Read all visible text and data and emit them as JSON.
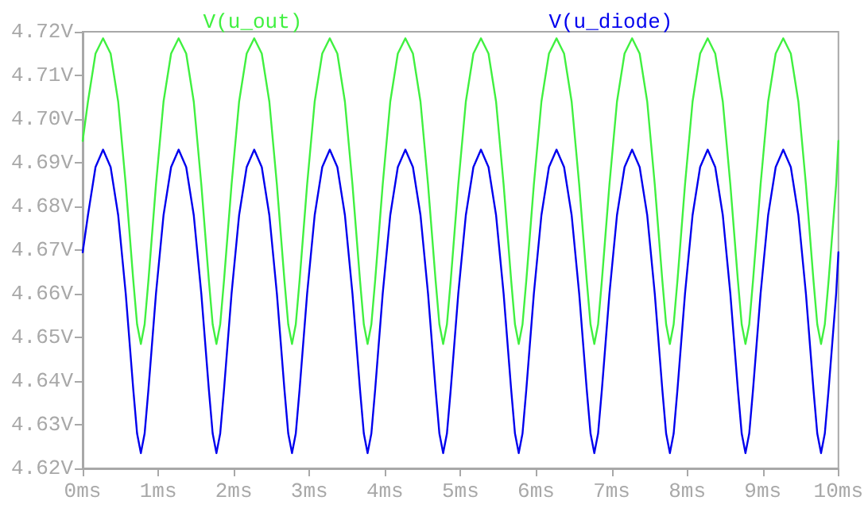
{
  "chart_data": {
    "type": "line",
    "legend": "top",
    "grid": false,
    "xlim": [
      0,
      10
    ],
    "xticks": [
      {
        "value": 0,
        "label": "0ms"
      },
      {
        "value": 1,
        "label": "1ms"
      },
      {
        "value": 2,
        "label": "2ms"
      },
      {
        "value": 3,
        "label": "3ms"
      },
      {
        "value": 4,
        "label": "4ms"
      },
      {
        "value": 5,
        "label": "5ms"
      },
      {
        "value": 6,
        "label": "6ms"
      },
      {
        "value": 7,
        "label": "7ms"
      },
      {
        "value": 8,
        "label": "8ms"
      },
      {
        "value": 9,
        "label": "9ms"
      },
      {
        "value": 10,
        "label": "10ms"
      }
    ],
    "ylim": [
      4.62,
      4.72
    ],
    "yticks": [
      {
        "value": 4.62,
        "label": "4.62V"
      },
      {
        "value": 4.63,
        "label": "4.63V"
      },
      {
        "value": 4.64,
        "label": "4.64V"
      },
      {
        "value": 4.65,
        "label": "4.65V"
      },
      {
        "value": 4.66,
        "label": "4.66V"
      },
      {
        "value": 4.67,
        "label": "4.67V"
      },
      {
        "value": 4.68,
        "label": "4.68V"
      },
      {
        "value": 4.69,
        "label": "4.69V"
      },
      {
        "value": 4.7,
        "label": "4.70V"
      },
      {
        "value": 4.71,
        "label": "4.71V"
      },
      {
        "value": 4.72,
        "label": "4.72V"
      }
    ],
    "x": [
      0,
      0.07,
      0.17,
      0.27,
      0.37,
      0.47,
      0.57,
      0.67,
      0.72,
      0.77,
      0.82,
      0.87,
      0.97,
      1.07,
      1.17,
      1.27,
      1.37,
      1.47,
      1.57,
      1.67,
      1.72,
      1.77,
      1.82,
      1.87,
      1.97,
      2.07,
      2.17,
      2.27,
      2.37,
      2.47,
      2.57,
      2.67,
      2.72,
      2.77,
      2.82,
      2.87,
      2.97,
      3.07,
      3.17,
      3.27,
      3.37,
      3.47,
      3.57,
      3.67,
      3.72,
      3.77,
      3.82,
      3.87,
      3.97,
      4.07,
      4.17,
      4.27,
      4.37,
      4.47,
      4.57,
      4.67,
      4.72,
      4.77,
      4.82,
      4.87,
      4.97,
      5.07,
      5.17,
      5.27,
      5.37,
      5.47,
      5.57,
      5.67,
      5.72,
      5.77,
      5.82,
      5.87,
      5.97,
      6.07,
      6.17,
      6.27,
      6.37,
      6.47,
      6.57,
      6.67,
      6.72,
      6.77,
      6.82,
      6.87,
      6.97,
      7.07,
      7.17,
      7.27,
      7.37,
      7.47,
      7.57,
      7.67,
      7.72,
      7.77,
      7.82,
      7.87,
      7.97,
      8.07,
      8.17,
      8.27,
      8.37,
      8.47,
      8.57,
      8.67,
      8.72,
      8.77,
      8.82,
      8.87,
      8.97,
      9.07,
      9.17,
      9.27,
      9.37,
      9.47,
      9.57,
      9.67,
      9.72,
      9.77,
      9.82,
      9.87,
      9.97,
      10
    ],
    "series": [
      {
        "name": "V(u_out)",
        "color": "#40f040",
        "values": [
          4.695,
          4.704,
          4.715,
          4.7185,
          4.715,
          4.704,
          4.685,
          4.663,
          4.653,
          4.6485,
          4.653,
          4.663,
          4.685,
          4.704,
          4.715,
          4.7185,
          4.715,
          4.704,
          4.685,
          4.663,
          4.653,
          4.6485,
          4.653,
          4.663,
          4.685,
          4.704,
          4.715,
          4.7185,
          4.715,
          4.704,
          4.685,
          4.663,
          4.653,
          4.6485,
          4.653,
          4.663,
          4.685,
          4.704,
          4.715,
          4.7185,
          4.715,
          4.704,
          4.685,
          4.663,
          4.653,
          4.6485,
          4.653,
          4.663,
          4.685,
          4.704,
          4.715,
          4.7185,
          4.715,
          4.704,
          4.685,
          4.663,
          4.653,
          4.6485,
          4.653,
          4.663,
          4.685,
          4.704,
          4.715,
          4.7185,
          4.715,
          4.704,
          4.685,
          4.663,
          4.653,
          4.6485,
          4.653,
          4.663,
          4.685,
          4.704,
          4.715,
          4.7185,
          4.715,
          4.704,
          4.685,
          4.663,
          4.653,
          4.6485,
          4.653,
          4.663,
          4.685,
          4.704,
          4.715,
          4.7185,
          4.715,
          4.704,
          4.685,
          4.663,
          4.653,
          4.6485,
          4.653,
          4.663,
          4.685,
          4.704,
          4.715,
          4.7185,
          4.715,
          4.704,
          4.685,
          4.663,
          4.653,
          4.6485,
          4.653,
          4.663,
          4.685,
          4.704,
          4.715,
          4.7185,
          4.715,
          4.704,
          4.685,
          4.663,
          4.653,
          4.6485,
          4.653,
          4.663,
          4.685,
          4.695
        ]
      },
      {
        "name": "V(u_diode)",
        "color": "#0000ee",
        "values": [
          4.6695,
          4.678,
          4.689,
          4.693,
          4.689,
          4.678,
          4.66,
          4.638,
          4.628,
          4.6235,
          4.628,
          4.638,
          4.66,
          4.678,
          4.689,
          4.693,
          4.689,
          4.678,
          4.66,
          4.638,
          4.628,
          4.6235,
          4.628,
          4.638,
          4.66,
          4.678,
          4.689,
          4.693,
          4.689,
          4.678,
          4.66,
          4.638,
          4.628,
          4.6235,
          4.628,
          4.638,
          4.66,
          4.678,
          4.689,
          4.693,
          4.689,
          4.678,
          4.66,
          4.638,
          4.628,
          4.6235,
          4.628,
          4.638,
          4.66,
          4.678,
          4.689,
          4.693,
          4.689,
          4.678,
          4.66,
          4.638,
          4.628,
          4.6235,
          4.628,
          4.638,
          4.66,
          4.678,
          4.689,
          4.693,
          4.689,
          4.678,
          4.66,
          4.638,
          4.628,
          4.6235,
          4.628,
          4.638,
          4.66,
          4.678,
          4.689,
          4.693,
          4.689,
          4.678,
          4.66,
          4.638,
          4.628,
          4.6235,
          4.628,
          4.638,
          4.66,
          4.678,
          4.689,
          4.693,
          4.689,
          4.678,
          4.66,
          4.638,
          4.628,
          4.6235,
          4.628,
          4.638,
          4.66,
          4.678,
          4.689,
          4.693,
          4.689,
          4.678,
          4.66,
          4.638,
          4.628,
          4.6235,
          4.628,
          4.638,
          4.66,
          4.678,
          4.689,
          4.693,
          4.689,
          4.678,
          4.66,
          4.638,
          4.628,
          4.6235,
          4.628,
          4.638,
          4.66,
          4.6695
        ]
      }
    ]
  }
}
